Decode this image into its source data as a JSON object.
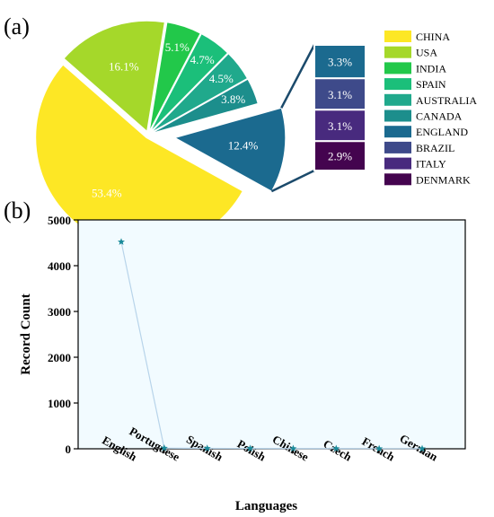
{
  "panel_a_label": "(a)",
  "panel_b_label": "(b)",
  "chart_data": [
    {
      "type": "pie",
      "slices": [
        {
          "label": "CHINA",
          "value": 53.4,
          "text": "53.4%",
          "color": "#fde725"
        },
        {
          "label": "USA",
          "value": 16.1,
          "text": "16.1%",
          "color": "#a5d82a"
        },
        {
          "label": "INDIA",
          "value": 5.1,
          "text": "5.1%",
          "color": "#22c84a"
        },
        {
          "label": "SPAIN",
          "value": 4.7,
          "text": "4.7%",
          "color": "#1bbf7a"
        },
        {
          "label": "AUSTRALIA",
          "value": 4.5,
          "text": "4.5%",
          "color": "#20a98c"
        },
        {
          "label": "CANADA",
          "value": 3.8,
          "text": "3.8%",
          "color": "#1c8e8c"
        },
        {
          "label": "ENGLAND",
          "value": 12.4,
          "text": "12.4%",
          "color": "#1b6a8f"
        }
      ],
      "breakout": [
        {
          "label": "ENGLAND",
          "value": 3.3,
          "text": "3.3%",
          "color": "#1b6a8f"
        },
        {
          "label": "BRAZIL",
          "value": 3.1,
          "text": "3.1%",
          "color": "#3e4a8a"
        },
        {
          "label": "ITALY",
          "value": 3.1,
          "text": "3.1%",
          "color": "#482a7e"
        },
        {
          "label": "DENMARK",
          "value": 2.9,
          "text": "2.9%",
          "color": "#44044f"
        }
      ],
      "legend": [
        {
          "label": "CHINA",
          "color": "#fde725"
        },
        {
          "label": "USA",
          "color": "#a5d82a"
        },
        {
          "label": "INDIA",
          "color": "#22c84a"
        },
        {
          "label": "SPAIN",
          "color": "#1bbf7a"
        },
        {
          "label": "AUSTRALIA",
          "color": "#20a98c"
        },
        {
          "label": "CANADA",
          "color": "#1c8e8c"
        },
        {
          "label": "ENGLAND",
          "color": "#1b6a8f"
        },
        {
          "label": "BRAZIL",
          "color": "#3e4a8a"
        },
        {
          "label": "ITALY",
          "color": "#482a7e"
        },
        {
          "label": "DENMARK",
          "color": "#44044f"
        }
      ],
      "legend_position": "right"
    },
    {
      "type": "line",
      "categories": [
        "English",
        "Portuguese",
        "Spanish",
        "Polish",
        "Chinese",
        "Czech",
        "French",
        "German"
      ],
      "values": [
        4520,
        15,
        10,
        8,
        5,
        5,
        4,
        4
      ],
      "xlabel": "Languages",
      "ylabel": "Record Count",
      "ylim": [
        0,
        5000
      ],
      "yticks": [
        0,
        1000,
        2000,
        3000,
        4000,
        5000
      ],
      "marker": "star",
      "line_color": "#b8d4ea",
      "marker_color": "#1a8a9a",
      "background": "#f2fbff"
    }
  ]
}
